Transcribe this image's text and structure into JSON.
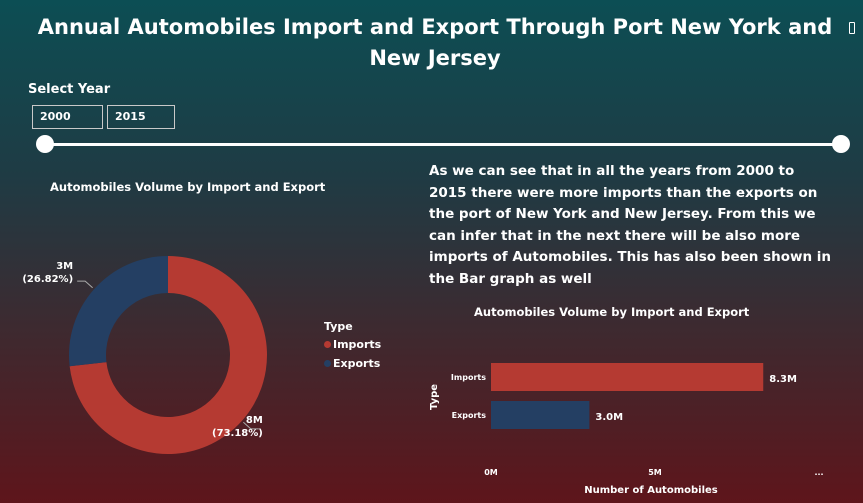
{
  "title": "Annual Automobiles Import and Export Through Port New York and New Jersey",
  "year_filter": {
    "label": "Select Year",
    "from": "2000",
    "to": "2015",
    "range_fraction": [
      0,
      1
    ]
  },
  "donut": {
    "title": "Automobiles Volume by Import and Export",
    "slices": [
      {
        "name": "Imports",
        "value_label": "8M",
        "percent_label": "(73.18%)",
        "percent": 73.18,
        "color": "#b53a32"
      },
      {
        "name": "Exports",
        "value_label": "3M",
        "percent_label": "(26.82%)",
        "percent": 26.82,
        "color": "#243f63"
      }
    ]
  },
  "legend": {
    "title": "Type",
    "items": [
      {
        "label": "Imports",
        "color": "#b53a32"
      },
      {
        "label": "Exports",
        "color": "#243f63"
      }
    ]
  },
  "insight_text": "As we can see that in all the years from 2000 to 2015 there were more imports than the exports on the port of New York and New Jersey. From this we can infer that in the next there will be also more imports of Automobiles. This has also been shown in the Bar graph as well",
  "bar_chart": {
    "title": "Automobiles Volume by Import and Export",
    "xlabel": "Number of Automobiles",
    "ylabel": "Type",
    "x_ticks": [
      "0M",
      "5M",
      "..."
    ],
    "more_icon": "ellipsis-icon"
  },
  "chart_data": {
    "type": "bar",
    "orientation": "horizontal",
    "categories": [
      "Imports",
      "Exports"
    ],
    "values": [
      8.3,
      3.0
    ],
    "value_labels": [
      "8.3M",
      "3.0M"
    ],
    "colors": [
      "#b53a32",
      "#243f63"
    ],
    "xlabel": "Number of Automobiles",
    "ylabel": "Type",
    "xlim": [
      0,
      10
    ],
    "unit": "M"
  },
  "corner_icon": "focus-mode-icon"
}
